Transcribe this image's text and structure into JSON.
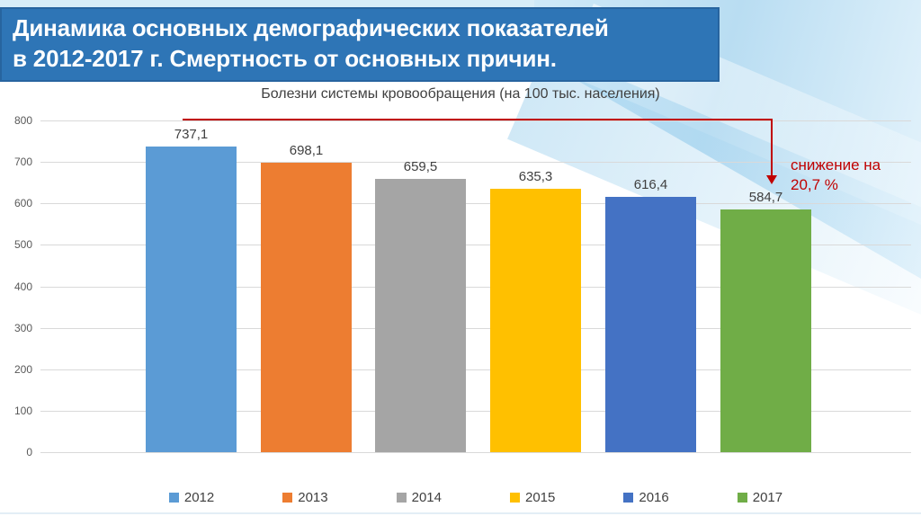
{
  "slide_title": {
    "line1": "Динамика основных демографических показателей",
    "line2": "в 2012-2017 г. Смертность от основных причин."
  },
  "chart_data": {
    "type": "bar",
    "title": "Болезни системы кровообращения (на 100 тыс. населения)",
    "categories": [
      "2012",
      "2013",
      "2014",
      "2015",
      "2016",
      "2017"
    ],
    "values": [
      737.1,
      698.1,
      659.5,
      635.3,
      616.4,
      584.7
    ],
    "value_labels": [
      "737,1",
      "698,1",
      "659,5",
      "635,3",
      "616,4",
      "584,7"
    ],
    "bar_colors": [
      "#5B9BD5",
      "#ED7D31",
      "#A5A5A5",
      "#FFC000",
      "#4472C4",
      "#70AD47"
    ],
    "ylim": [
      0,
      800
    ],
    "yticks": [
      800,
      700,
      600,
      500,
      400,
      300,
      200,
      100,
      0
    ],
    "grid": true,
    "legend_position": "bottom",
    "annotation": {
      "line1": "снижение на",
      "line2": "20,7 %",
      "color": "#C00000"
    }
  },
  "theme": {
    "banner_color": "#2E75B6",
    "title_text_color": "#FFFFFF",
    "chart_text_color": "#404040",
    "axis_text_color": "#595959",
    "gridline_color": "#D9D9D9",
    "background_accent": "#C3E3F5"
  }
}
